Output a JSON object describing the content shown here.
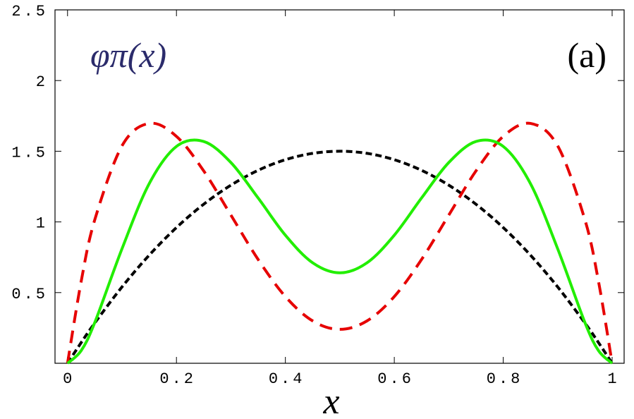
{
  "chart_data": {
    "type": "line",
    "x": [
      0,
      0.025,
      0.05,
      0.1,
      0.15,
      0.2,
      0.25,
      0.3,
      0.35,
      0.4,
      0.45,
      0.5,
      0.55,
      0.6,
      0.65,
      0.7,
      0.75,
      0.8,
      0.85,
      0.9,
      0.95,
      0.975,
      1
    ],
    "series": [
      {
        "color": "#000000",
        "style": "dotted",
        "values": [
          0,
          0.146,
          0.285,
          0.54,
          0.765,
          0.96,
          1.125,
          1.26,
          1.365,
          1.44,
          1.485,
          1.5,
          1.485,
          1.44,
          1.365,
          1.26,
          1.125,
          0.96,
          0.765,
          0.54,
          0.285,
          0.146,
          0
        ]
      },
      {
        "color": "#e60000",
        "style": "dashed",
        "values": [
          0,
          0.578,
          1.015,
          1.538,
          1.697,
          1.605,
          1.361,
          1.048,
          0.734,
          0.472,
          0.3,
          0.24,
          0.3,
          0.472,
          0.734,
          1.048,
          1.361,
          1.605,
          1.697,
          1.538,
          1.015,
          0.578,
          0
        ]
      },
      {
        "color": "#22ee00",
        "style": "solid",
        "values": [
          0,
          0.089,
          0.288,
          0.81,
          1.271,
          1.534,
          1.569,
          1.42,
          1.169,
          0.906,
          0.711,
          0.64,
          0.711,
          0.906,
          1.169,
          1.42,
          1.569,
          1.534,
          1.271,
          0.81,
          0.288,
          0.089,
          0
        ]
      }
    ],
    "xlim": [
      -0.023,
      1.022
    ],
    "ylim": [
      0,
      2.5
    ],
    "xticks": [
      0,
      0.2,
      0.4,
      0.6,
      0.8,
      1
    ],
    "yticks": [
      0.5,
      1,
      1.5,
      2,
      2.5
    ],
    "x_label": "x",
    "annotations": [
      "φπ(x)",
      "(a)"
    ]
  }
}
